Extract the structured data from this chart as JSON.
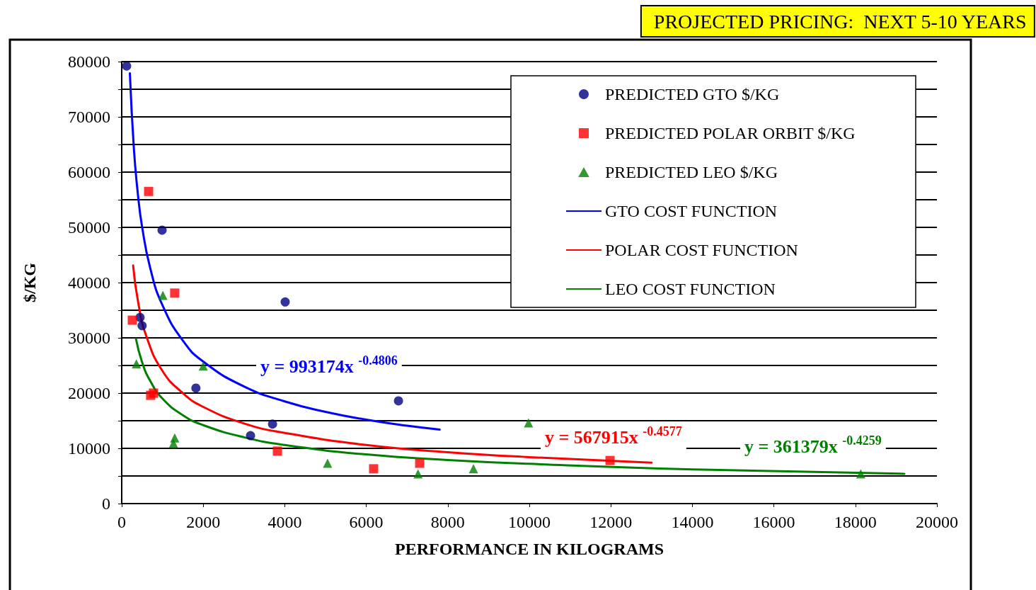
{
  "chart_data": {
    "type": "scatter",
    "title": "PROJECTED PRICING:  NEXT 5-10 YEARS",
    "xlabel": "PERFORMANCE IN KILOGRAMS",
    "ylabel": "$/KG",
    "xlim": [
      0,
      20000
    ],
    "xticks": [
      0,
      2000,
      4000,
      6000,
      8000,
      10000,
      12000,
      14000,
      16000,
      18000,
      20000
    ],
    "ylim": [
      0,
      80000
    ],
    "yticks": [
      0,
      {
        "value": 5000,
        "label": null
      },
      10000,
      {
        "value": 15000,
        "label": null
      },
      20000,
      {
        "value": 25000,
        "label": null
      },
      30000,
      {
        "value": 35000,
        "label": null
      },
      40000,
      {
        "value": 45000,
        "label": null
      },
      50000,
      {
        "value": 55000,
        "label": null
      },
      60000,
      {
        "value": 65000,
        "label": null
      },
      70000,
      {
        "value": 75000,
        "label": null
      },
      80000
    ],
    "grid": "y",
    "legend": "top right",
    "series": [
      {
        "name": "PREDICTED GTO $/KG",
        "marker": "circle",
        "color": "#000080",
        "x": [
          120,
          450,
          500,
          990,
          1820,
          3160,
          3700,
          4010,
          6790
        ],
        "values": [
          79200,
          33700,
          32200,
          49500,
          20900,
          12300,
          14400,
          36500,
          18600
        ]
      },
      {
        "name": "PREDICTED POLAR ORBIT $/KG",
        "marker": "square",
        "color": "#ff0000",
        "x": [
          660,
          260,
          1300,
          710,
          780,
          3820,
          6180,
          7310,
          11980
        ],
        "values": [
          56500,
          33200,
          38100,
          19600,
          20000,
          9500,
          6300,
          7300,
          7800
        ]
      },
      {
        "name": "PREDICTED LEO $/KG",
        "marker": "triangle",
        "color": "#008000",
        "x": [
          360,
          1010,
          2000,
          1270,
          1300,
          5050,
          7270,
          8630,
          9980,
          18130
        ],
        "values": [
          25300,
          37700,
          24900,
          10900,
          11900,
          7300,
          5400,
          6300,
          14600,
          5400
        ]
      },
      {
        "name": "GTO COST FUNCTION",
        "type": "line",
        "marker": "none",
        "line_style": "solid",
        "color": "#0000ff",
        "x": [
          200,
          300,
          400,
          500,
          700,
          1000,
          1500,
          2000,
          3000,
          4000,
          5000,
          6000,
          7000,
          7800
        ],
        "values": [
          77900,
          64100,
          55800,
          50100,
          42600,
          35900,
          29500,
          25700,
          21200,
          18500,
          16600,
          15200,
          14100,
          13400
        ]
      },
      {
        "name": "POLAR COST FUNCTION",
        "type": "line",
        "marker": "none",
        "line_style": "solid",
        "color": "#ff0000",
        "x": [
          280,
          400,
          600,
          1000,
          1500,
          2000,
          3000,
          4000,
          6000,
          8000,
          10000,
          13000
        ],
        "values": [
          43100,
          36600,
          30400,
          24000,
          20000,
          17500,
          14500,
          12800,
          10600,
          9300,
          8400,
          7400
        ]
      },
      {
        "name": "LEO COST FUNCTION",
        "type": "line",
        "marker": "none",
        "line_style": "solid",
        "color": "#008000",
        "x": [
          350,
          500,
          700,
          1000,
          1500,
          2000,
          3000,
          4000,
          6000,
          8000,
          10000,
          14000,
          19200
        ],
        "values": [
          29800,
          25600,
          22200,
          19000,
          16000,
          14200,
          12000,
          10600,
          8900,
          7900,
          7200,
          6200,
          5400
        ]
      }
    ],
    "annotations": [
      "y = 993174x $^{-0.4806}$",
      "y = 567915x $^{-0.4577}$",
      "y = 361379x $^{-0.4259}$"
    ]
  }
}
